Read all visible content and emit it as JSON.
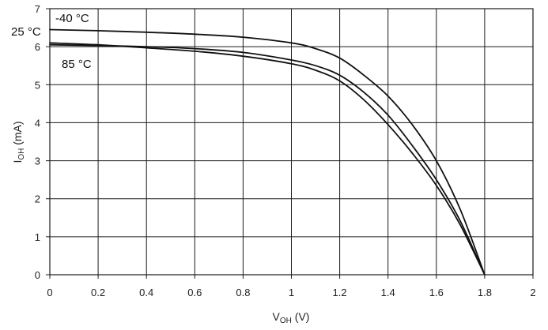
{
  "chart_data": {
    "type": "line",
    "title": "",
    "xlabel": {
      "main": "V",
      "sub": "OH",
      "unit": " (V)"
    },
    "ylabel": {
      "main": "I",
      "sub": "OH",
      "unit": " (mA)"
    },
    "xlim": [
      0,
      2
    ],
    "ylim": [
      0,
      7
    ],
    "x_ticks": [
      "0",
      "0.2",
      "0.4",
      "0.6",
      "0.8",
      "1",
      "1.2",
      "1.4",
      "1.6",
      "1.8",
      "2"
    ],
    "y_ticks": [
      "0",
      "1",
      "2",
      "3",
      "4",
      "5",
      "6",
      "7"
    ],
    "grid": true,
    "legend": "none",
    "annotations": [
      "-40 °C",
      "25 °C",
      "85 °C"
    ],
    "series": [
      {
        "x": [
          0,
          0.2,
          0.4,
          0.6,
          0.8,
          1.0,
          1.1,
          1.2,
          1.3,
          1.4,
          1.5,
          1.6,
          1.7,
          1.8
        ],
        "y": [
          6.45,
          6.42,
          6.38,
          6.33,
          6.25,
          6.1,
          5.95,
          5.7,
          5.25,
          4.7,
          3.95,
          3.0,
          1.7,
          0
        ]
      },
      {
        "x": [
          0,
          0.2,
          0.4,
          0.6,
          0.8,
          1.0,
          1.1,
          1.2,
          1.3,
          1.4,
          1.5,
          1.6,
          1.7,
          1.8
        ],
        "y": [
          6.05,
          6.03,
          6.0,
          5.95,
          5.85,
          5.65,
          5.5,
          5.25,
          4.8,
          4.2,
          3.4,
          2.5,
          1.4,
          0
        ]
      },
      {
        "x": [
          0,
          0.2,
          0.4,
          0.6,
          0.8,
          1.0,
          1.1,
          1.2,
          1.3,
          1.4,
          1.5,
          1.6,
          1.7,
          1.8
        ],
        "y": [
          6.1,
          6.05,
          5.97,
          5.88,
          5.75,
          5.55,
          5.38,
          5.1,
          4.6,
          3.95,
          3.2,
          2.35,
          1.3,
          0
        ]
      }
    ]
  }
}
